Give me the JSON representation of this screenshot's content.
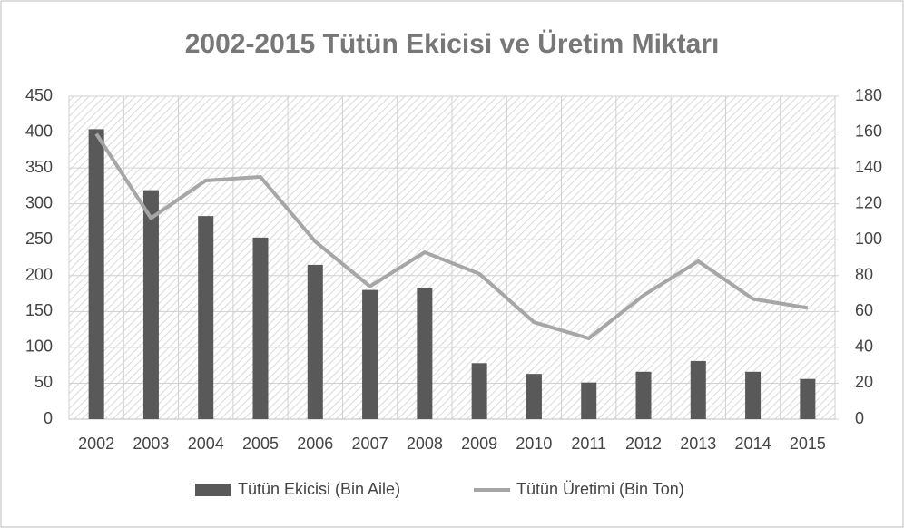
{
  "chart_data": {
    "type": "bar-line",
    "title": "2002-2015 Tütün Ekicisi ve Üretim Miktarı",
    "categories": [
      "2002",
      "2003",
      "2004",
      "2005",
      "2006",
      "2007",
      "2008",
      "2009",
      "2010",
      "2011",
      "2012",
      "2013",
      "2014",
      "2015"
    ],
    "series": [
      {
        "name": "Tütün Ekicisi (Bin Aile)",
        "type": "bar",
        "color": "#595959",
        "values": [
          404,
          319,
          283,
          253,
          215,
          180,
          182,
          78,
          63,
          51,
          66,
          81,
          66,
          56
        ]
      },
      {
        "name": "Tütün Üretimi (Bin Ton)",
        "type": "line",
        "axis": "y2",
        "color": "#a6a6a6",
        "values": [
          159,
          112,
          133,
          135,
          99,
          74,
          93,
          81,
          54,
          45,
          69,
          88,
          67,
          62
        ]
      }
    ],
    "ylim": [
      0,
      450
    ],
    "yticks": [
      0,
      50,
      100,
      150,
      200,
      250,
      300,
      350,
      400,
      450
    ],
    "y2lim": [
      0,
      180
    ],
    "y2ticks": [
      0,
      20,
      40,
      60,
      80,
      100,
      120,
      140,
      160,
      180
    ],
    "grid": true,
    "legend": "bottom"
  }
}
